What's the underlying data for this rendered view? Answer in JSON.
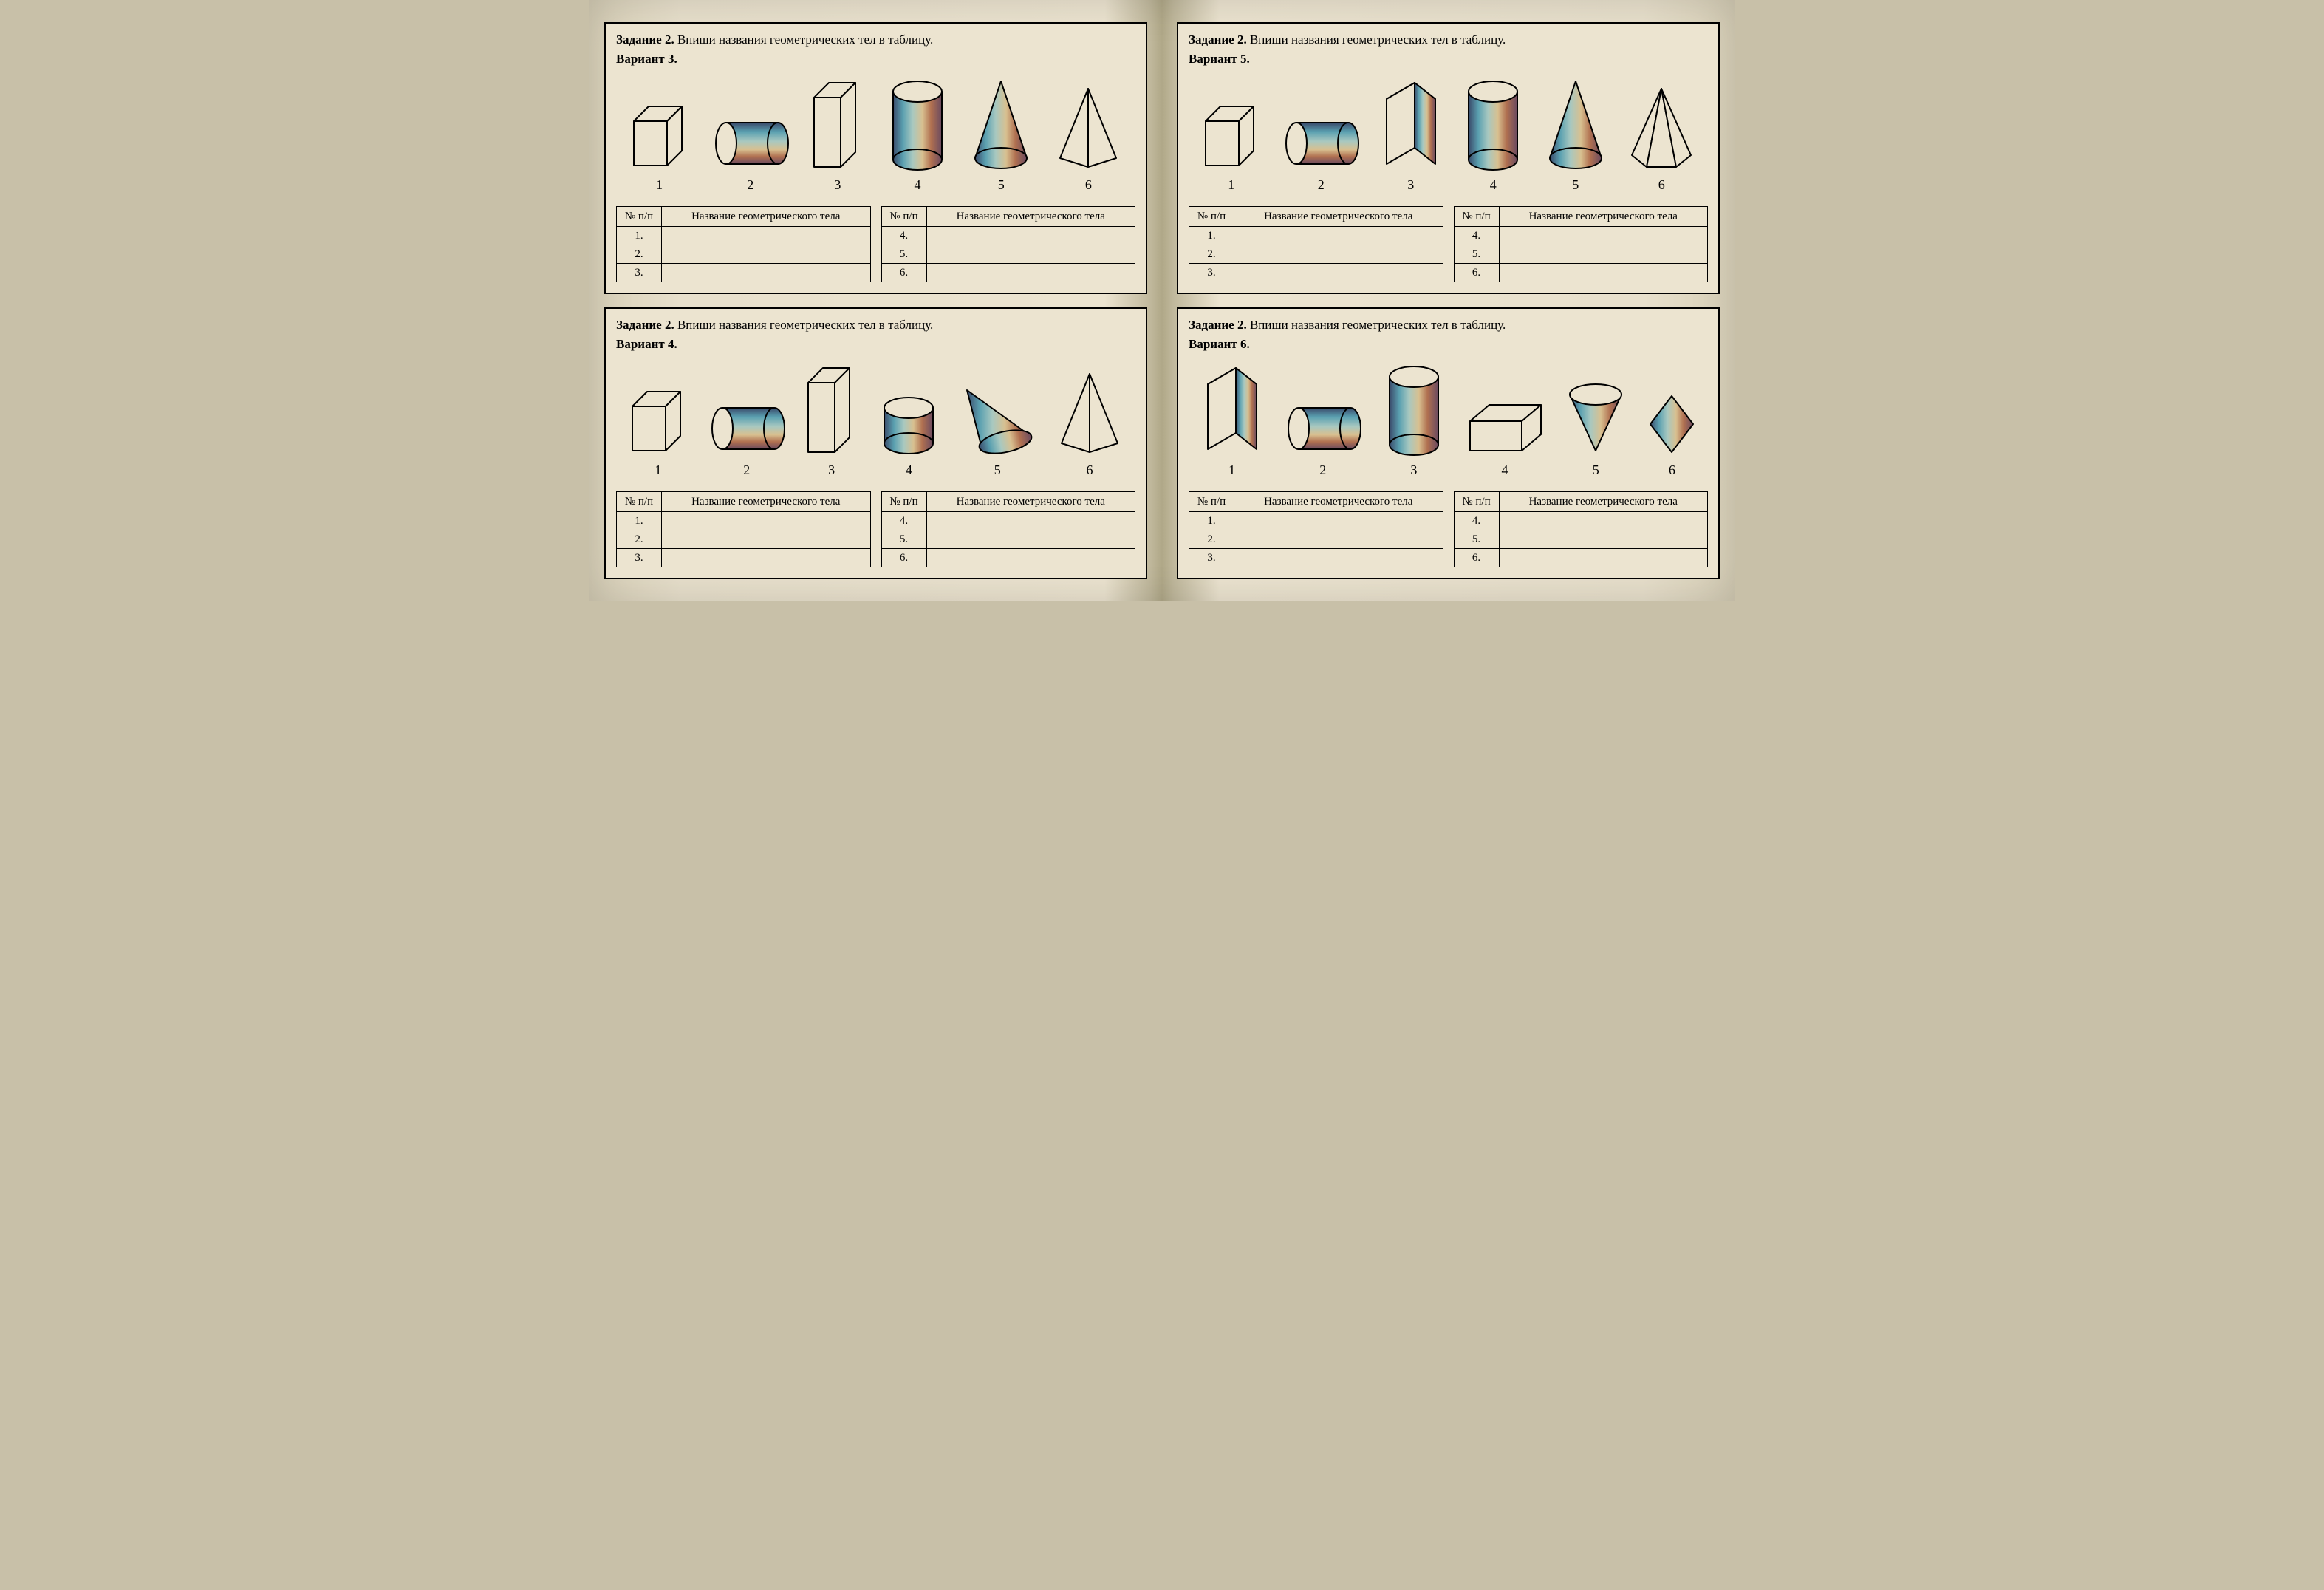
{
  "task_line_prefix": "Задание 2.",
  "task_line_text": " Впиши названия геометрических тел в таблицу.",
  "table_header_num": "№ п/п",
  "table_header_name": "Название геометрического тела",
  "rows_left": [
    "1.",
    "2.",
    "3."
  ],
  "rows_right": [
    "4.",
    "5.",
    "6."
  ],
  "fig_numbers": [
    "1",
    "2",
    "3",
    "4",
    "5",
    "6"
  ],
  "cards": [
    {
      "variant": "Вариант 3.",
      "shapes": [
        "cube",
        "cyl_ly",
        "cuboid_tall",
        "cyl_up",
        "cone",
        "pyramid"
      ]
    },
    {
      "variant": "Вариант 4.",
      "shapes": [
        "cube",
        "cyl_ly",
        "cuboid_tall",
        "cyl_short",
        "cone_tilt",
        "pyramid"
      ]
    },
    {
      "variant": "Вариант 5.",
      "shapes": [
        "cube",
        "cyl_ly",
        "prism_tri",
        "cyl_up",
        "cone",
        "pyramid_hex"
      ]
    },
    {
      "variant": "Вариант 6.",
      "shapes": [
        "prism_tri",
        "cyl_ly",
        "cyl_up",
        "cuboid_flat",
        "cone_inv",
        "rhombus"
      ]
    }
  ],
  "style": {
    "stroke": "#000000",
    "stroke_width": 2,
    "gradient_colors": [
      "#3a4a6a",
      "#5aa0b0",
      "#a8c8c0",
      "#d8c090",
      "#b07050",
      "#6a4a60"
    ],
    "paper_bg": "#ece4d0"
  }
}
